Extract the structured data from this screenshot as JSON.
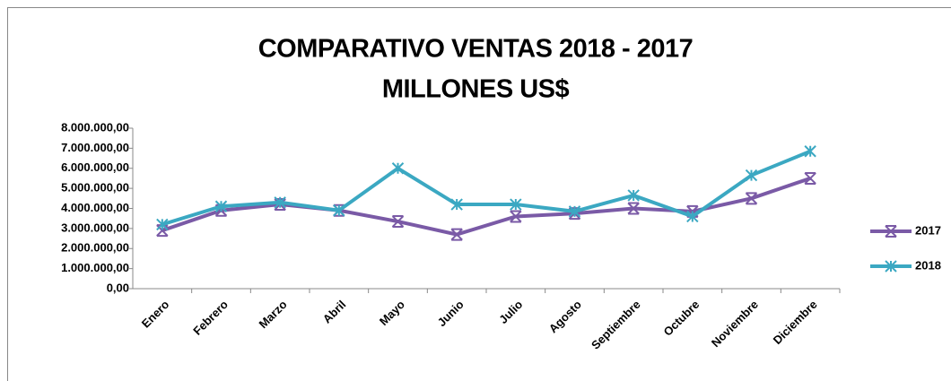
{
  "chart_data": {
    "type": "line",
    "title": [
      "COMPARATIVO VENTAS 2018 - 2017",
      "MILLONES US$"
    ],
    "categories": [
      "Enero",
      "Febrero",
      "Marzo",
      "Abril",
      "Mayo",
      "Junio",
      "Julio",
      "Agosto",
      "Septiembre",
      "Octubre",
      "Noviembre",
      "Diciembre"
    ],
    "series": [
      {
        "name": "2017",
        "color": "#7a5aa6",
        "values": [
          2900000,
          3900000,
          4200000,
          3900000,
          3350000,
          2700000,
          3600000,
          3750000,
          4000000,
          3850000,
          4500000,
          5500000
        ]
      },
      {
        "name": "2018",
        "color": "#3ba8c2",
        "values": [
          3200000,
          4100000,
          4300000,
          3900000,
          6000000,
          4200000,
          4200000,
          3850000,
          4650000,
          3600000,
          5650000,
          6850000
        ]
      }
    ],
    "ylim": [
      0,
      8000000
    ],
    "yticks": [
      {
        "value": 0,
        "label": "0,00"
      },
      {
        "value": 1000000,
        "label": "1.000.000,00"
      },
      {
        "value": 2000000,
        "label": "2.000.000,00"
      },
      {
        "value": 3000000,
        "label": "3.000.000,00"
      },
      {
        "value": 4000000,
        "label": "4.000.000,00"
      },
      {
        "value": 5000000,
        "label": "5.000.000,00"
      },
      {
        "value": 6000000,
        "label": "6.000.000,00"
      },
      {
        "value": 7000000,
        "label": "7.000.000,00"
      },
      {
        "value": 8000000,
        "label": "8.000.000,00"
      }
    ],
    "grid": false,
    "legend": "right"
  }
}
